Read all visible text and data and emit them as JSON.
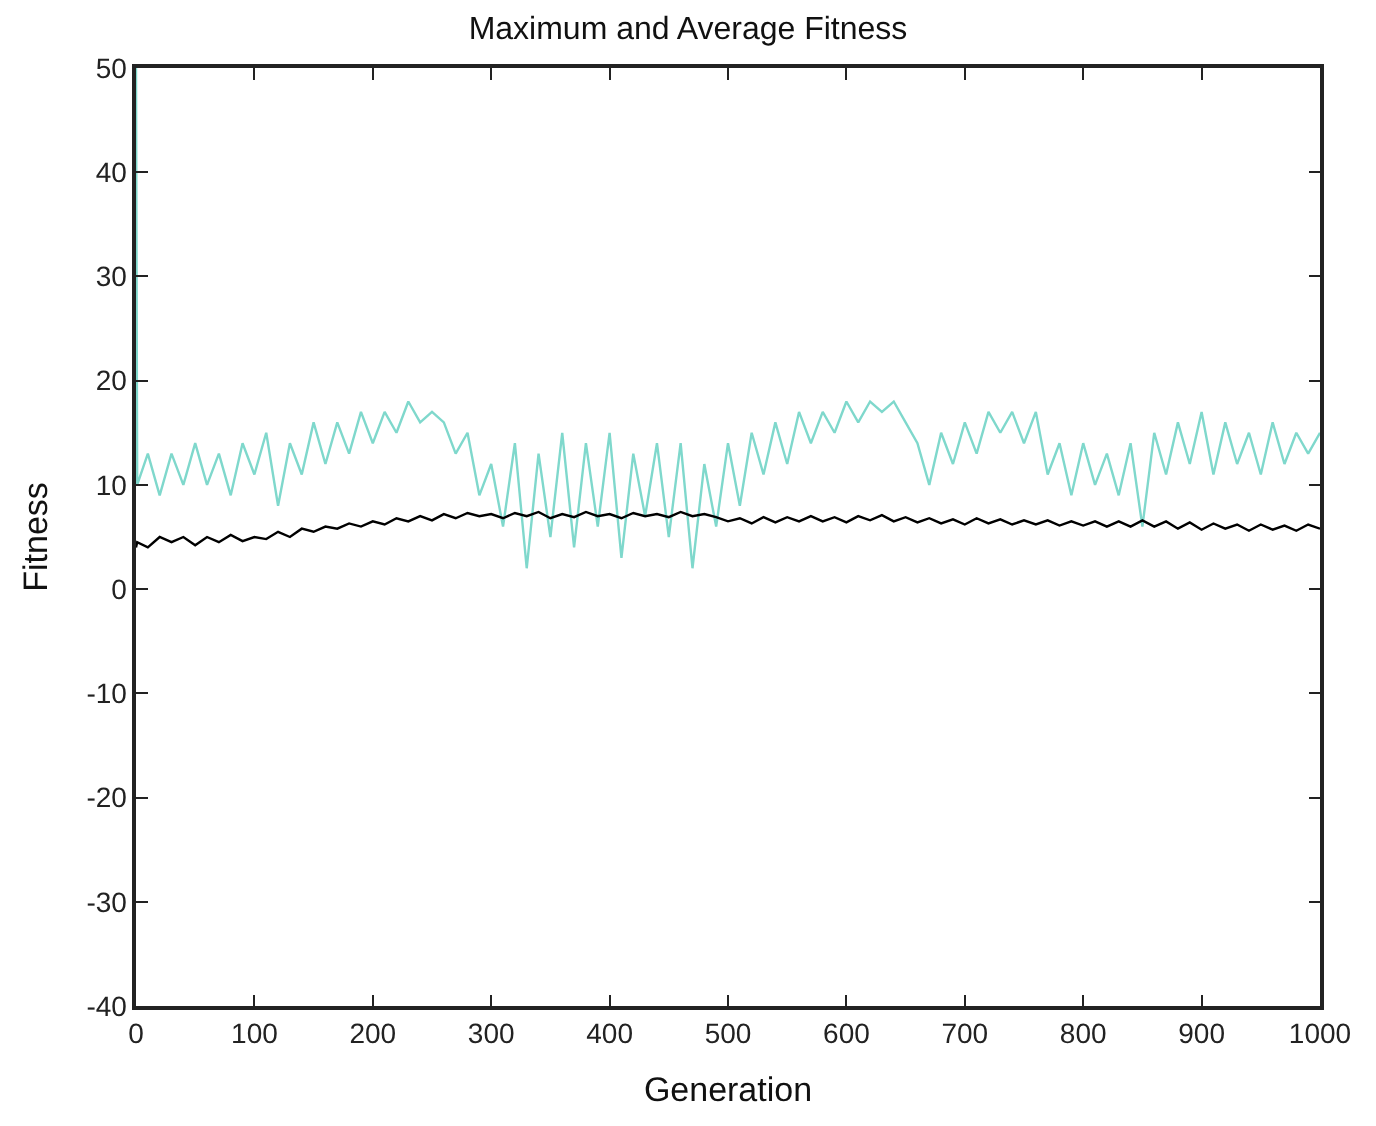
{
  "chart_data": {
    "type": "line",
    "title": "Maximum and Average Fitness",
    "xlabel": "Generation",
    "ylabel": "Fitness",
    "x": [
      0,
      1,
      10,
      20,
      30,
      40,
      50,
      60,
      70,
      80,
      90,
      100,
      110,
      120,
      130,
      140,
      150,
      160,
      170,
      180,
      190,
      200,
      210,
      220,
      230,
      240,
      250,
      260,
      270,
      280,
      290,
      300,
      310,
      320,
      330,
      340,
      350,
      360,
      370,
      380,
      390,
      400,
      410,
      420,
      430,
      440,
      450,
      460,
      470,
      480,
      490,
      500,
      510,
      520,
      530,
      540,
      550,
      560,
      570,
      580,
      590,
      600,
      610,
      620,
      630,
      640,
      650,
      660,
      670,
      680,
      690,
      700,
      710,
      720,
      730,
      740,
      750,
      760,
      770,
      780,
      790,
      800,
      810,
      820,
      830,
      840,
      850,
      860,
      870,
      880,
      890,
      900,
      910,
      920,
      930,
      940,
      950,
      960,
      970,
      980,
      990,
      1000
    ],
    "series": [
      {
        "color": "#7fd8cc",
        "values": [
          50,
          10,
          13,
          9,
          13,
          10,
          14,
          10,
          13,
          9,
          14,
          11,
          15,
          8,
          14,
          11,
          16,
          12,
          16,
          13,
          17,
          14,
          17,
          15,
          18,
          16,
          17,
          16,
          13,
          15,
          9,
          12,
          6,
          14,
          2,
          13,
          5,
          15,
          4,
          14,
          6,
          15,
          3,
          13,
          7,
          14,
          5,
          14,
          2,
          12,
          6,
          14,
          8,
          15,
          11,
          16,
          12,
          17,
          14,
          17,
          15,
          18,
          16,
          18,
          17,
          18,
          16,
          14,
          10,
          15,
          12,
          16,
          13,
          17,
          15,
          17,
          14,
          17,
          11,
          14,
          9,
          14,
          10,
          13,
          9,
          14,
          6,
          15,
          11,
          16,
          12,
          17,
          11,
          16,
          12,
          15,
          11,
          16,
          12,
          15,
          13,
          15
        ]
      },
      {
        "color": "#000000",
        "values": [
          4,
          4.5,
          4,
          5,
          4.5,
          5,
          4.2,
          5,
          4.5,
          5.2,
          4.6,
          5,
          4.8,
          5.5,
          5,
          5.8,
          5.5,
          6,
          5.8,
          6.3,
          6,
          6.5,
          6.2,
          6.8,
          6.5,
          7,
          6.6,
          7.2,
          6.8,
          7.3,
          7,
          7.2,
          6.8,
          7.3,
          7,
          7.4,
          6.8,
          7.2,
          6.9,
          7.4,
          7,
          7.2,
          6.8,
          7.3,
          7,
          7.2,
          6.9,
          7.4,
          7,
          7.2,
          6.9,
          6.5,
          6.8,
          6.3,
          6.9,
          6.4,
          6.9,
          6.5,
          7,
          6.5,
          6.9,
          6.4,
          7,
          6.6,
          7.1,
          6.5,
          6.9,
          6.4,
          6.8,
          6.3,
          6.7,
          6.2,
          6.8,
          6.3,
          6.7,
          6.2,
          6.6,
          6.2,
          6.6,
          6.1,
          6.5,
          6.1,
          6.5,
          6,
          6.5,
          6,
          6.6,
          6,
          6.5,
          5.8,
          6.4,
          5.7,
          6.3,
          5.8,
          6.2,
          5.6,
          6.2,
          5.7,
          6.1,
          5.6,
          6.2,
          5.8
        ]
      }
    ],
    "xlim": [
      0,
      1000
    ],
    "xticks": [
      0,
      100,
      200,
      300,
      400,
      500,
      600,
      700,
      800,
      900,
      1000
    ],
    "ylim": [
      -40,
      50
    ],
    "yticks": [
      -40,
      -30,
      -20,
      -10,
      0,
      10,
      20,
      30,
      40,
      50
    ]
  }
}
